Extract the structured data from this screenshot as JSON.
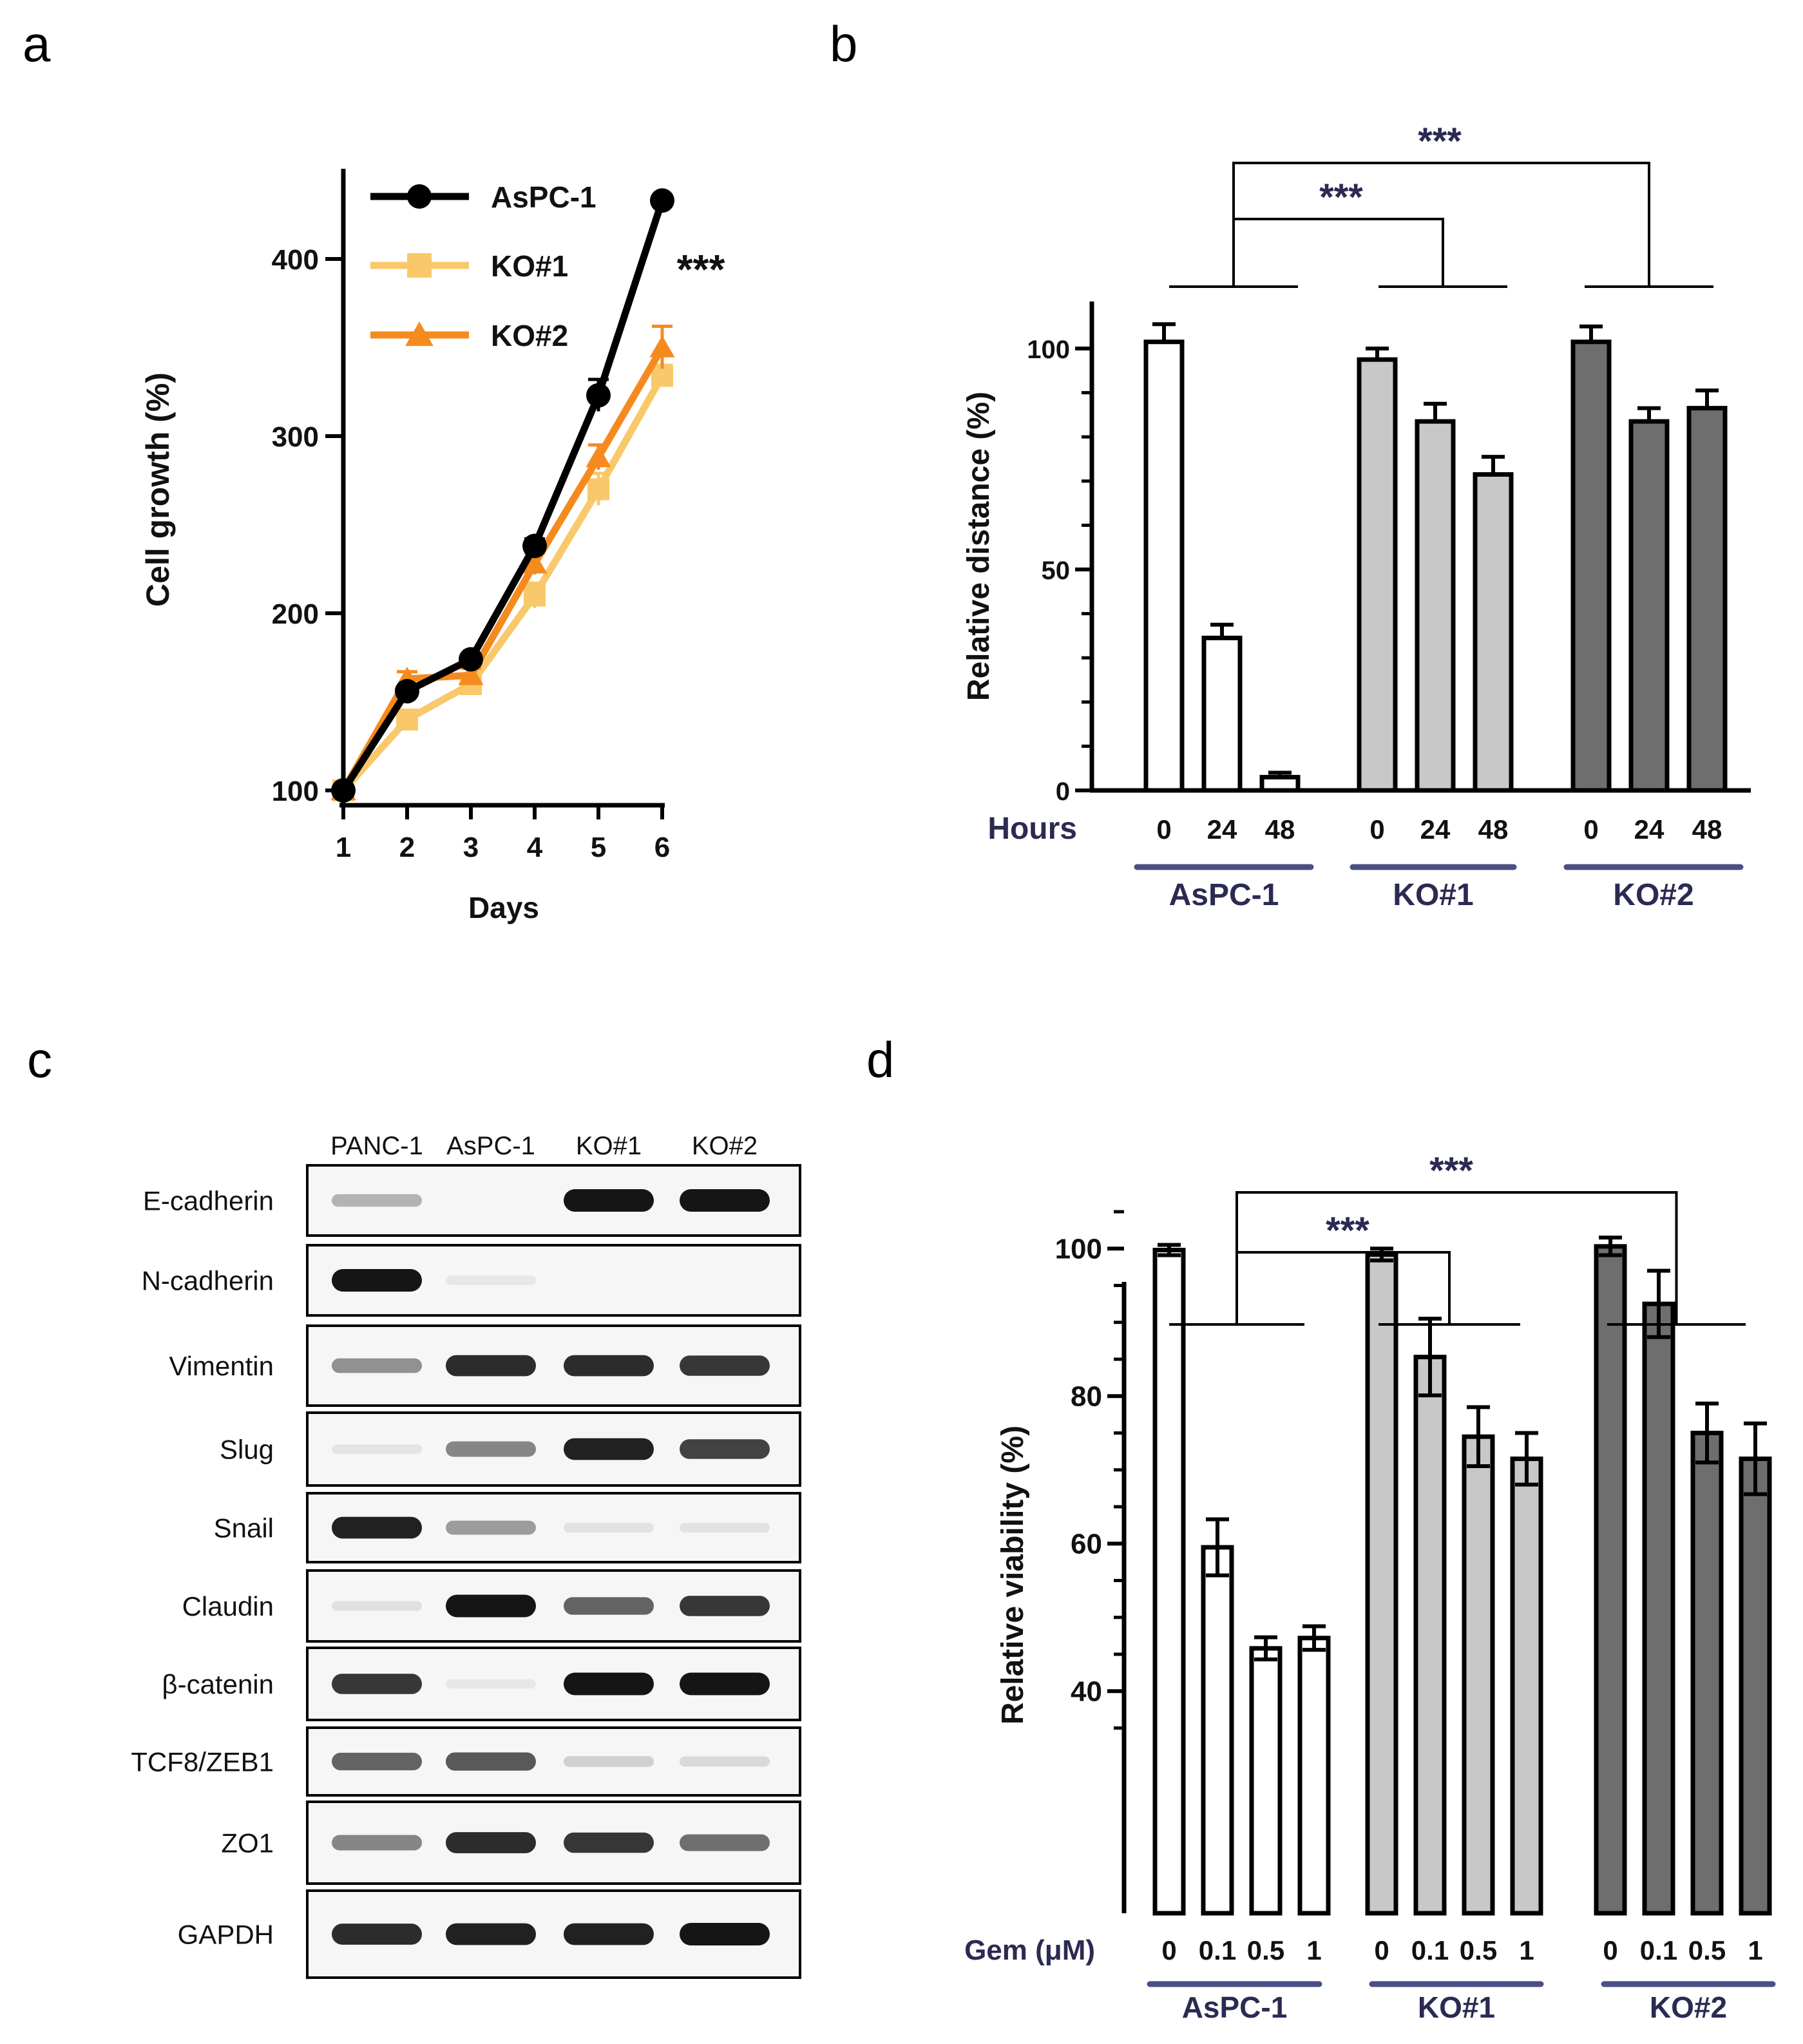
{
  "panels": {
    "a": "a",
    "b": "b",
    "c": "c",
    "d": "d"
  },
  "colors": {
    "asp": "#000000",
    "ko1": "#f9c86b",
    "ko2": "#f58b1f",
    "bar_white": "#ffffff",
    "bar_light": "#c8c8c8",
    "bar_dark": "#6e6e6e",
    "navy": "#2b2a52",
    "group_line": "#4b4f86"
  },
  "chart_data": [
    {
      "panel": "a",
      "type": "line",
      "title": "",
      "xlabel": "Days",
      "ylabel": "Cell growth (%)",
      "x": [
        1,
        2,
        3,
        4,
        5,
        6
      ],
      "xticks": [
        "1",
        "2",
        "3",
        "4",
        "5",
        "6"
      ],
      "yticks": [
        "100",
        "200",
        "300",
        "400"
      ],
      "ylim": [
        100,
        440
      ],
      "annotation": "***",
      "legend_position": "top-left",
      "series": [
        {
          "name": "AsPC-1",
          "marker": "circle",
          "color": "#000000",
          "values": [
            100,
            156,
            174,
            238,
            323,
            433
          ],
          "err": [
            0,
            3,
            3,
            4,
            9,
            0
          ]
        },
        {
          "name": "KO#1",
          "marker": "square",
          "color": "#f9c86b",
          "values": [
            100,
            140,
            160,
            210,
            270,
            334
          ],
          "err": [
            0,
            4,
            5,
            7,
            9,
            6
          ]
        },
        {
          "name": "KO#2",
          "marker": "triangle",
          "color": "#f58b1f",
          "values": [
            100,
            163,
            165,
            228,
            288,
            350
          ],
          "err": [
            0,
            4,
            4,
            6,
            7,
            12
          ]
        }
      ]
    },
    {
      "panel": "b",
      "type": "bar",
      "xlabel": "Hours",
      "ylabel": "Relative distance (%)",
      "yticks": [
        "0",
        "50",
        "100"
      ],
      "ylim": [
        0,
        110
      ],
      "categories": [
        "0",
        "24",
        "48"
      ],
      "sig": [
        "***",
        "***"
      ],
      "groups": [
        {
          "name": "AsPC-1",
          "color": "#ffffff",
          "values": [
            101.5,
            34.5,
            3
          ],
          "err": [
            4,
            3,
            1
          ]
        },
        {
          "name": "KO#1",
          "color": "#c8c8c8",
          "values": [
            97.5,
            83.5,
            71.5
          ],
          "err": [
            2.5,
            4,
            4
          ]
        },
        {
          "name": "KO#2",
          "color": "#6e6e6e",
          "values": [
            101.5,
            83.5,
            86.5
          ],
          "err": [
            3.5,
            3,
            4
          ]
        }
      ]
    },
    {
      "panel": "d",
      "type": "bar",
      "xlabel": "Gem (μM)",
      "ylabel": "Relative viability (%)",
      "yticks": [
        "40",
        "60",
        "80",
        "100"
      ],
      "ylim": [
        25,
        110
      ],
      "categories": [
        "0",
        "0.1",
        "0.5",
        "1"
      ],
      "sig": [
        "***",
        "***"
      ],
      "groups": [
        {
          "name": "AsPC-1",
          "color": "#ffffff",
          "values": [
            99.8,
            59.5,
            45.8,
            47.2
          ],
          "err": [
            0.7,
            3.8,
            1.5,
            1.6
          ]
        },
        {
          "name": "KO#1",
          "color": "#c8c8c8",
          "values": [
            99.2,
            85.3,
            74.5,
            71.5
          ],
          "err": [
            0.8,
            5.2,
            4,
            3.5
          ]
        },
        {
          "name": "KO#2",
          "color": "#6e6e6e",
          "values": [
            100.3,
            92.5,
            75,
            71.5
          ],
          "err": [
            1.2,
            4.5,
            4,
            4.8
          ]
        }
      ]
    }
  ],
  "blot": {
    "panel": "c",
    "lanes": [
      "PANC-1",
      "AsPC-1",
      "KO#1",
      "KO#2"
    ],
    "rows": [
      {
        "label": "E-cadherin",
        "intensity": [
          0.25,
          0.0,
          0.95,
          0.95
        ]
      },
      {
        "label": "N-cadherin",
        "intensity": [
          0.95,
          0.02,
          0.0,
          0.0
        ]
      },
      {
        "label": "Vimentin",
        "intensity": [
          0.4,
          0.85,
          0.85,
          0.8
        ]
      },
      {
        "label": "Slug",
        "intensity": [
          0.03,
          0.45,
          0.9,
          0.75
        ]
      },
      {
        "label": "Snail",
        "intensity": [
          0.9,
          0.35,
          0.04,
          0.04
        ]
      },
      {
        "label": "Claudin",
        "intensity": [
          0.05,
          0.95,
          0.6,
          0.8
        ]
      },
      {
        "label": "β-catenin",
        "intensity": [
          0.8,
          0.02,
          0.95,
          0.95
        ]
      },
      {
        "label": "TCF8/ZEB1",
        "intensity": [
          0.6,
          0.65,
          0.12,
          0.08
        ]
      },
      {
        "label": "ZO1",
        "intensity": [
          0.45,
          0.85,
          0.8,
          0.55
        ]
      },
      {
        "label": "GAPDH",
        "intensity": [
          0.85,
          0.9,
          0.9,
          0.95
        ]
      }
    ]
  }
}
